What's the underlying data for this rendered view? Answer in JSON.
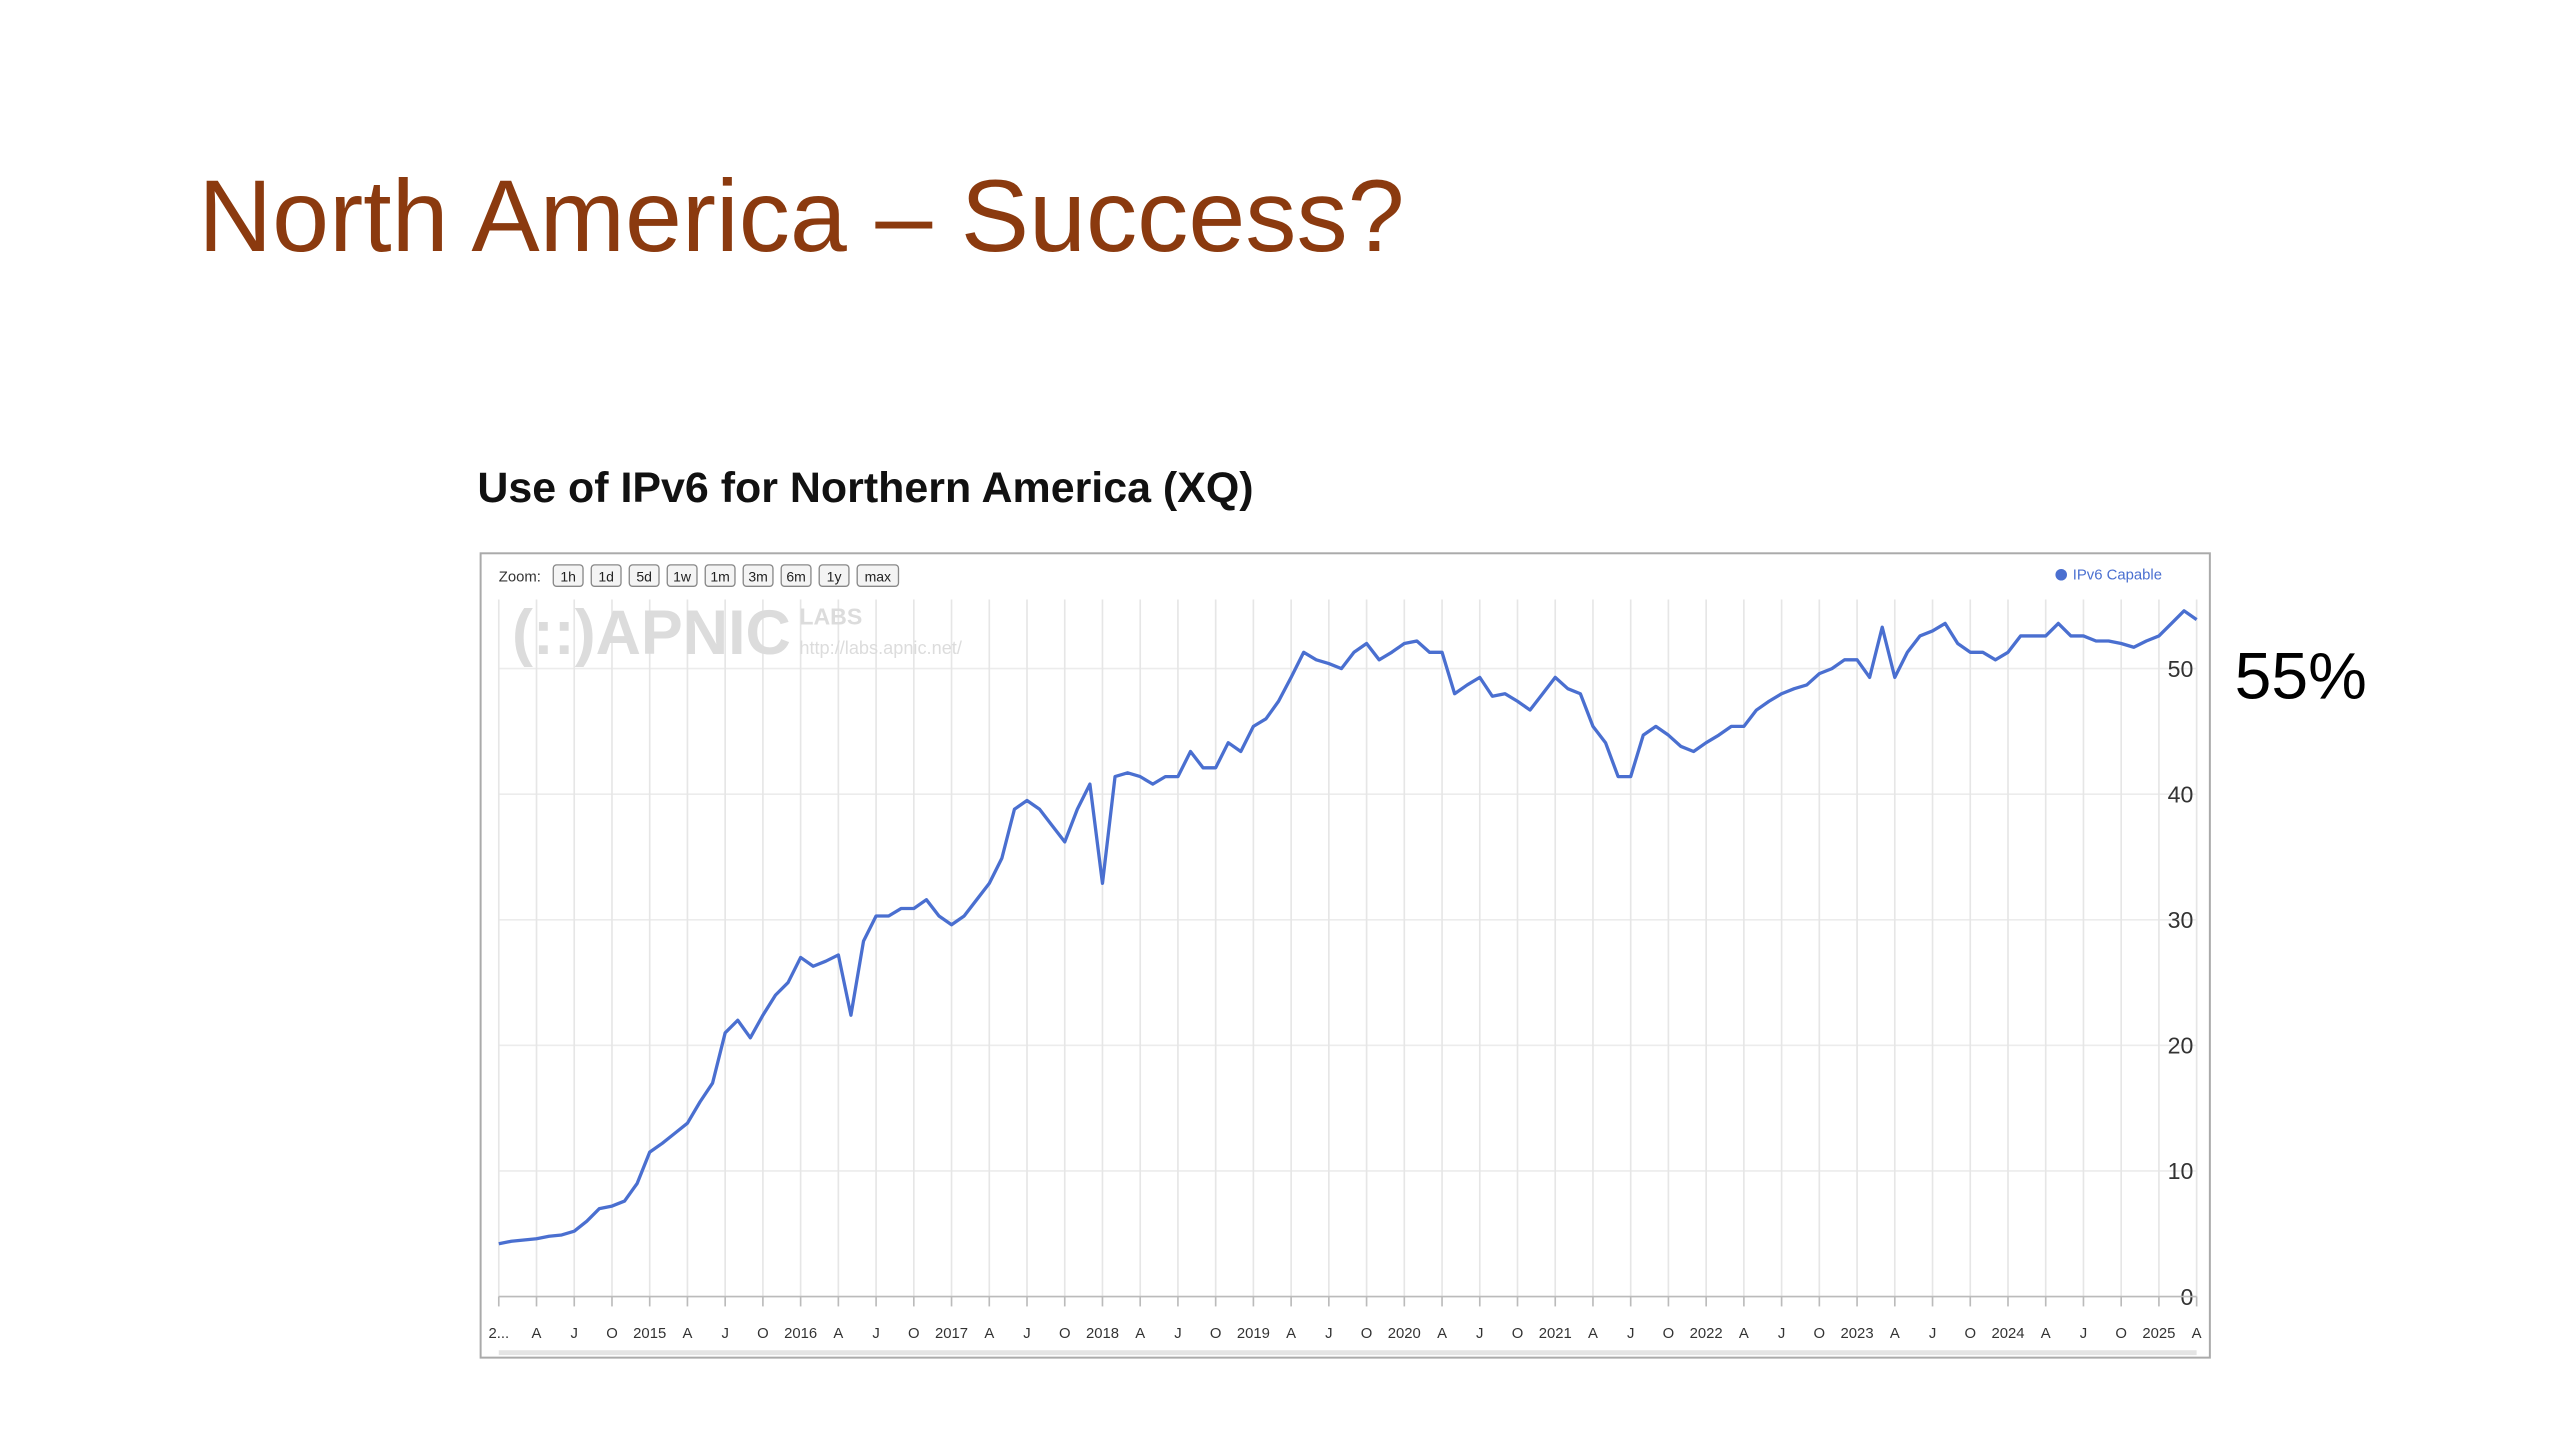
{
  "slide_title": "North America – Success?",
  "annotation": "55%",
  "controls": {
    "zoom_label": "Zoom:",
    "buttons": [
      "1h",
      "1d",
      "5d",
      "1w",
      "1m",
      "3m",
      "6m",
      "1y",
      "max"
    ]
  },
  "watermark": {
    "logo": "(::)APNIC",
    "labs": "LABS",
    "url": "http://labs.apnic.net/"
  },
  "chart_data": {
    "type": "line",
    "title": "Use of IPv6 for Northern America (XQ)",
    "grid": true,
    "legend": "top-right",
    "x": [
      "2014-01",
      "2014-02",
      "2014-03",
      "2014-04",
      "2014-05",
      "2014-06",
      "2014-07",
      "2014-08",
      "2014-09",
      "2014-10",
      "2014-11",
      "2014-12",
      "2015-01",
      "2015-02",
      "2015-03",
      "2015-04",
      "2015-05",
      "2015-06",
      "2015-07",
      "2015-08",
      "2015-09",
      "2015-10",
      "2015-11",
      "2015-12",
      "2016-01",
      "2016-02",
      "2016-03",
      "2016-04",
      "2016-05",
      "2016-06",
      "2016-07",
      "2016-08",
      "2016-09",
      "2016-10",
      "2016-11",
      "2016-12",
      "2017-01",
      "2017-02",
      "2017-03",
      "2017-04",
      "2017-05",
      "2017-06",
      "2017-07",
      "2017-08",
      "2017-09",
      "2017-10",
      "2017-11",
      "2017-12",
      "2018-01",
      "2018-02",
      "2018-03",
      "2018-04",
      "2018-05",
      "2018-06",
      "2018-07",
      "2018-08",
      "2018-09",
      "2018-10",
      "2018-11",
      "2018-12",
      "2019-01",
      "2019-02",
      "2019-03",
      "2019-04",
      "2019-05",
      "2019-06",
      "2019-07",
      "2019-08",
      "2019-09",
      "2019-10",
      "2019-11",
      "2019-12",
      "2020-01",
      "2020-02",
      "2020-03",
      "2020-04",
      "2020-05",
      "2020-06",
      "2020-07",
      "2020-08",
      "2020-09",
      "2020-10",
      "2020-11",
      "2020-12",
      "2021-01",
      "2021-02",
      "2021-03",
      "2021-04",
      "2021-05",
      "2021-06",
      "2021-07",
      "2021-08",
      "2021-09",
      "2021-10",
      "2021-11",
      "2021-12",
      "2022-01",
      "2022-02",
      "2022-03",
      "2022-04",
      "2022-05",
      "2022-06",
      "2022-07",
      "2022-08",
      "2022-09",
      "2022-10",
      "2022-11",
      "2022-12",
      "2023-01",
      "2023-02",
      "2023-03",
      "2023-04",
      "2023-05",
      "2023-06",
      "2023-07",
      "2023-08",
      "2023-09",
      "2023-10",
      "2023-11",
      "2023-12",
      "2024-01",
      "2024-02",
      "2024-03",
      "2024-04",
      "2024-05",
      "2024-06",
      "2024-07",
      "2024-08",
      "2024-09",
      "2024-10",
      "2024-11",
      "2024-12",
      "2025-01",
      "2025-02",
      "2025-03",
      "2025-04"
    ],
    "series": [
      {
        "name": "IPv6 Capable",
        "color": "#4a6fd0",
        "values": [
          4.2,
          4.4,
          4.5,
          4.6,
          4.8,
          4.9,
          5.2,
          6,
          7,
          7.2,
          7.6,
          9,
          11.5,
          12.2,
          13,
          13.8,
          15.5,
          17,
          21,
          22,
          20.6,
          22.4,
          24,
          25,
          27,
          26.3,
          26.7,
          27.2,
          22.4,
          28.3,
          30.3,
          30.3,
          30.9,
          30.9,
          31.6,
          30.3,
          29.6,
          30.3,
          31.6,
          32.9,
          34.9,
          38.8,
          39.5,
          38.8,
          37.5,
          36.2,
          38.8,
          40.8,
          32.9,
          41.4,
          41.7,
          41.4,
          40.8,
          41.4,
          41.4,
          43.4,
          42.1,
          42.1,
          44.1,
          43.4,
          45.4,
          46,
          47.4,
          49.3,
          51.3,
          50.7,
          50.4,
          50,
          51.3,
          52,
          50.7,
          51.3,
          52,
          52.2,
          51.3,
          51.3,
          48,
          48.7,
          49.3,
          47.8,
          48,
          47.4,
          46.7,
          48,
          49.3,
          48.4,
          48,
          45.4,
          44.1,
          41.4,
          41.4,
          44.7,
          45.4,
          44.7,
          43.8,
          43.4,
          44.1,
          44.7,
          45.4,
          45.4,
          46.7,
          47.4,
          48,
          48.4,
          48.7,
          49.6,
          50,
          50.7,
          50.7,
          49.3,
          53.3,
          49.3,
          51.3,
          52.6,
          53,
          53.6,
          52,
          51.3,
          51.3,
          50.7,
          51.3,
          52.6,
          52.6,
          52.6,
          53.6,
          52.6,
          52.6,
          52.2,
          52.2,
          52,
          51.7,
          52.2,
          52.6,
          53.6,
          54.6,
          53.9
        ]
      }
    ],
    "xlim": [
      "2014-01",
      "2025-04"
    ],
    "ylim": [
      0,
      55.5
    ],
    "yticks": [
      0,
      10,
      20,
      30,
      40,
      50
    ],
    "xticks": [
      {
        "value": "2014-01",
        "label": "2..."
      },
      {
        "value": "2014-04",
        "label": "A"
      },
      {
        "value": "2014-07",
        "label": "J"
      },
      {
        "value": "2014-10",
        "label": "O"
      },
      {
        "value": "2015-01",
        "label": "2015"
      },
      {
        "value": "2015-04",
        "label": "A"
      },
      {
        "value": "2015-07",
        "label": "J"
      },
      {
        "value": "2015-10",
        "label": "O"
      },
      {
        "value": "2016-01",
        "label": "2016"
      },
      {
        "value": "2016-04",
        "label": "A"
      },
      {
        "value": "2016-07",
        "label": "J"
      },
      {
        "value": "2016-10",
        "label": "O"
      },
      {
        "value": "2017-01",
        "label": "2017"
      },
      {
        "value": "2017-04",
        "label": "A"
      },
      {
        "value": "2017-07",
        "label": "J"
      },
      {
        "value": "2017-10",
        "label": "O"
      },
      {
        "value": "2018-01",
        "label": "2018"
      },
      {
        "value": "2018-04",
        "label": "A"
      },
      {
        "value": "2018-07",
        "label": "J"
      },
      {
        "value": "2018-10",
        "label": "O"
      },
      {
        "value": "2019-01",
        "label": "2019"
      },
      {
        "value": "2019-04",
        "label": "A"
      },
      {
        "value": "2019-07",
        "label": "J"
      },
      {
        "value": "2019-10",
        "label": "O"
      },
      {
        "value": "2020-01",
        "label": "2020"
      },
      {
        "value": "2020-04",
        "label": "A"
      },
      {
        "value": "2020-07",
        "label": "J"
      },
      {
        "value": "2020-10",
        "label": "O"
      },
      {
        "value": "2021-01",
        "label": "2021"
      },
      {
        "value": "2021-04",
        "label": "A"
      },
      {
        "value": "2021-07",
        "label": "J"
      },
      {
        "value": "2021-10",
        "label": "O"
      },
      {
        "value": "2022-01",
        "label": "2022"
      },
      {
        "value": "2022-04",
        "label": "A"
      },
      {
        "value": "2022-07",
        "label": "J"
      },
      {
        "value": "2022-10",
        "label": "O"
      },
      {
        "value": "2023-01",
        "label": "2023"
      },
      {
        "value": "2023-04",
        "label": "A"
      },
      {
        "value": "2023-07",
        "label": "J"
      },
      {
        "value": "2023-10",
        "label": "O"
      },
      {
        "value": "2024-01",
        "label": "2024"
      },
      {
        "value": "2024-04",
        "label": "A"
      },
      {
        "value": "2024-07",
        "label": "J"
      },
      {
        "value": "2024-10",
        "label": "O"
      },
      {
        "value": "2025-01",
        "label": "2025"
      },
      {
        "value": "2025-04",
        "label": "A"
      }
    ]
  }
}
